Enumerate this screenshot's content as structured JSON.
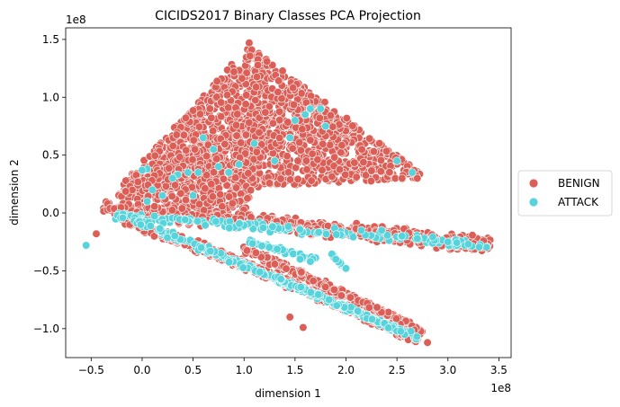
{
  "chart_data": {
    "type": "scatter",
    "title": "CICIDS2017 Binary Classes PCA Projection",
    "xlabel": "dimension 1",
    "ylabel": "dimension 2",
    "x_scale_label": "1e8",
    "y_scale_label": "1e8",
    "xlim": [
      -0.75,
      3.62
    ],
    "ylim": [
      -1.25,
      1.6
    ],
    "x_ticks": [
      -0.5,
      0.0,
      0.5,
      1.0,
      1.5,
      2.0,
      2.5,
      3.0,
      3.5
    ],
    "x_tick_labels": [
      "−0.5",
      "0.0",
      "0.5",
      "1.0",
      "1.5",
      "2.0",
      "2.5",
      "3.0",
      "3.5"
    ],
    "y_ticks": [
      -1.0,
      -0.5,
      0.0,
      0.5,
      1.0,
      1.5
    ],
    "y_tick_labels": [
      "−1.0",
      "−0.5",
      "0.0",
      "0.5",
      "1.0",
      "1.5"
    ],
    "grid": false,
    "legend_position": "right-outside",
    "series": [
      {
        "name": "BENIGN",
        "color": "#db5f57",
        "regions": [
          {
            "shape": "triangle",
            "vertices": [
              [
                -0.3,
                0.15
              ],
              [
                1.05,
                1.45
              ],
              [
                2.8,
                0.3
              ]
            ],
            "count": 1500
          },
          {
            "shape": "triangle",
            "vertices": [
              [
                -0.3,
                0.15
              ],
              [
                1.3,
                0.95
              ],
              [
                1.0,
                -0.05
              ]
            ],
            "count": 500
          },
          {
            "shape": "band",
            "from": [
              -0.4,
              0.05
            ],
            "to": [
              3.42,
              -0.28
            ],
            "width": 0.09,
            "count": 600
          },
          {
            "shape": "band",
            "from": [
              -0.2,
              -0.05
            ],
            "to": [
              2.75,
              -1.05
            ],
            "width": 0.06,
            "count": 500
          },
          {
            "shape": "band",
            "from": [
              0.5,
              -0.25
            ],
            "to": [
              2.7,
              -1.1
            ],
            "width": 0.05,
            "count": 300
          },
          {
            "shape": "band",
            "from": [
              1.0,
              -0.3
            ],
            "to": [
              2.7,
              -1.0
            ],
            "width": 0.05,
            "count": 220
          }
        ],
        "points": [
          [
            -0.55,
            -0.28
          ],
          [
            -0.45,
            -0.18
          ],
          [
            1.45,
            -0.9
          ],
          [
            1.58,
            -0.99
          ],
          [
            2.8,
            -1.12
          ],
          [
            1.05,
            1.47
          ],
          [
            2.55,
            0.3
          ],
          [
            2.7,
            0.3
          ]
        ]
      },
      {
        "name": "ATTACK",
        "color": "#57d3db",
        "regions": [
          {
            "shape": "band",
            "from": [
              -0.25,
              -0.02
            ],
            "to": [
              3.4,
              -0.28
            ],
            "width": 0.05,
            "count": 160
          },
          {
            "shape": "band",
            "from": [
              -0.1,
              -0.05
            ],
            "to": [
              2.7,
              -1.08
            ],
            "width": 0.04,
            "count": 230
          },
          {
            "shape": "band",
            "from": [
              1.05,
              -0.25
            ],
            "to": [
              1.7,
              -0.4
            ],
            "width": 0.03,
            "count": 60
          },
          {
            "shape": "band",
            "from": [
              1.3,
              -0.55
            ],
            "to": [
              2.6,
              -1.05
            ],
            "width": 0.03,
            "count": 90
          },
          {
            "shape": "band",
            "from": [
              1.85,
              -0.35
            ],
            "to": [
              2.0,
              -0.48
            ],
            "width": 0.02,
            "count": 12
          }
        ],
        "points": [
          [
            -0.55,
            -0.28
          ],
          [
            0.05,
            0.38
          ],
          [
            0.0,
            0.37
          ],
          [
            0.35,
            0.33
          ],
          [
            0.45,
            0.35
          ],
          [
            0.55,
            0.35
          ],
          [
            0.6,
            0.65
          ],
          [
            0.7,
            0.55
          ],
          [
            0.75,
            0.4
          ],
          [
            0.85,
            0.35
          ],
          [
            0.95,
            0.42
          ],
          [
            1.1,
            0.6
          ],
          [
            1.3,
            0.45
          ],
          [
            1.45,
            0.65
          ],
          [
            1.5,
            0.8
          ],
          [
            1.6,
            0.85
          ],
          [
            1.65,
            0.9
          ],
          [
            1.75,
            0.9
          ],
          [
            1.8,
            0.75
          ],
          [
            2.5,
            0.45
          ],
          [
            2.65,
            0.35
          ],
          [
            0.05,
            0.1
          ],
          [
            0.1,
            0.2
          ],
          [
            0.3,
            0.3
          ],
          [
            0.5,
            0.15
          ],
          [
            0.2,
            0.15
          ],
          [
            2.15,
            -0.15
          ],
          [
            2.35,
            -0.15
          ],
          [
            2.55,
            -0.2
          ],
          [
            2.7,
            -0.22
          ],
          [
            3.0,
            -0.25
          ],
          [
            3.2,
            -0.27
          ],
          [
            1.9,
            -0.4
          ],
          [
            2.0,
            -0.48
          ],
          [
            1.55,
            -0.4
          ],
          [
            1.65,
            -0.42
          ]
        ]
      }
    ]
  }
}
